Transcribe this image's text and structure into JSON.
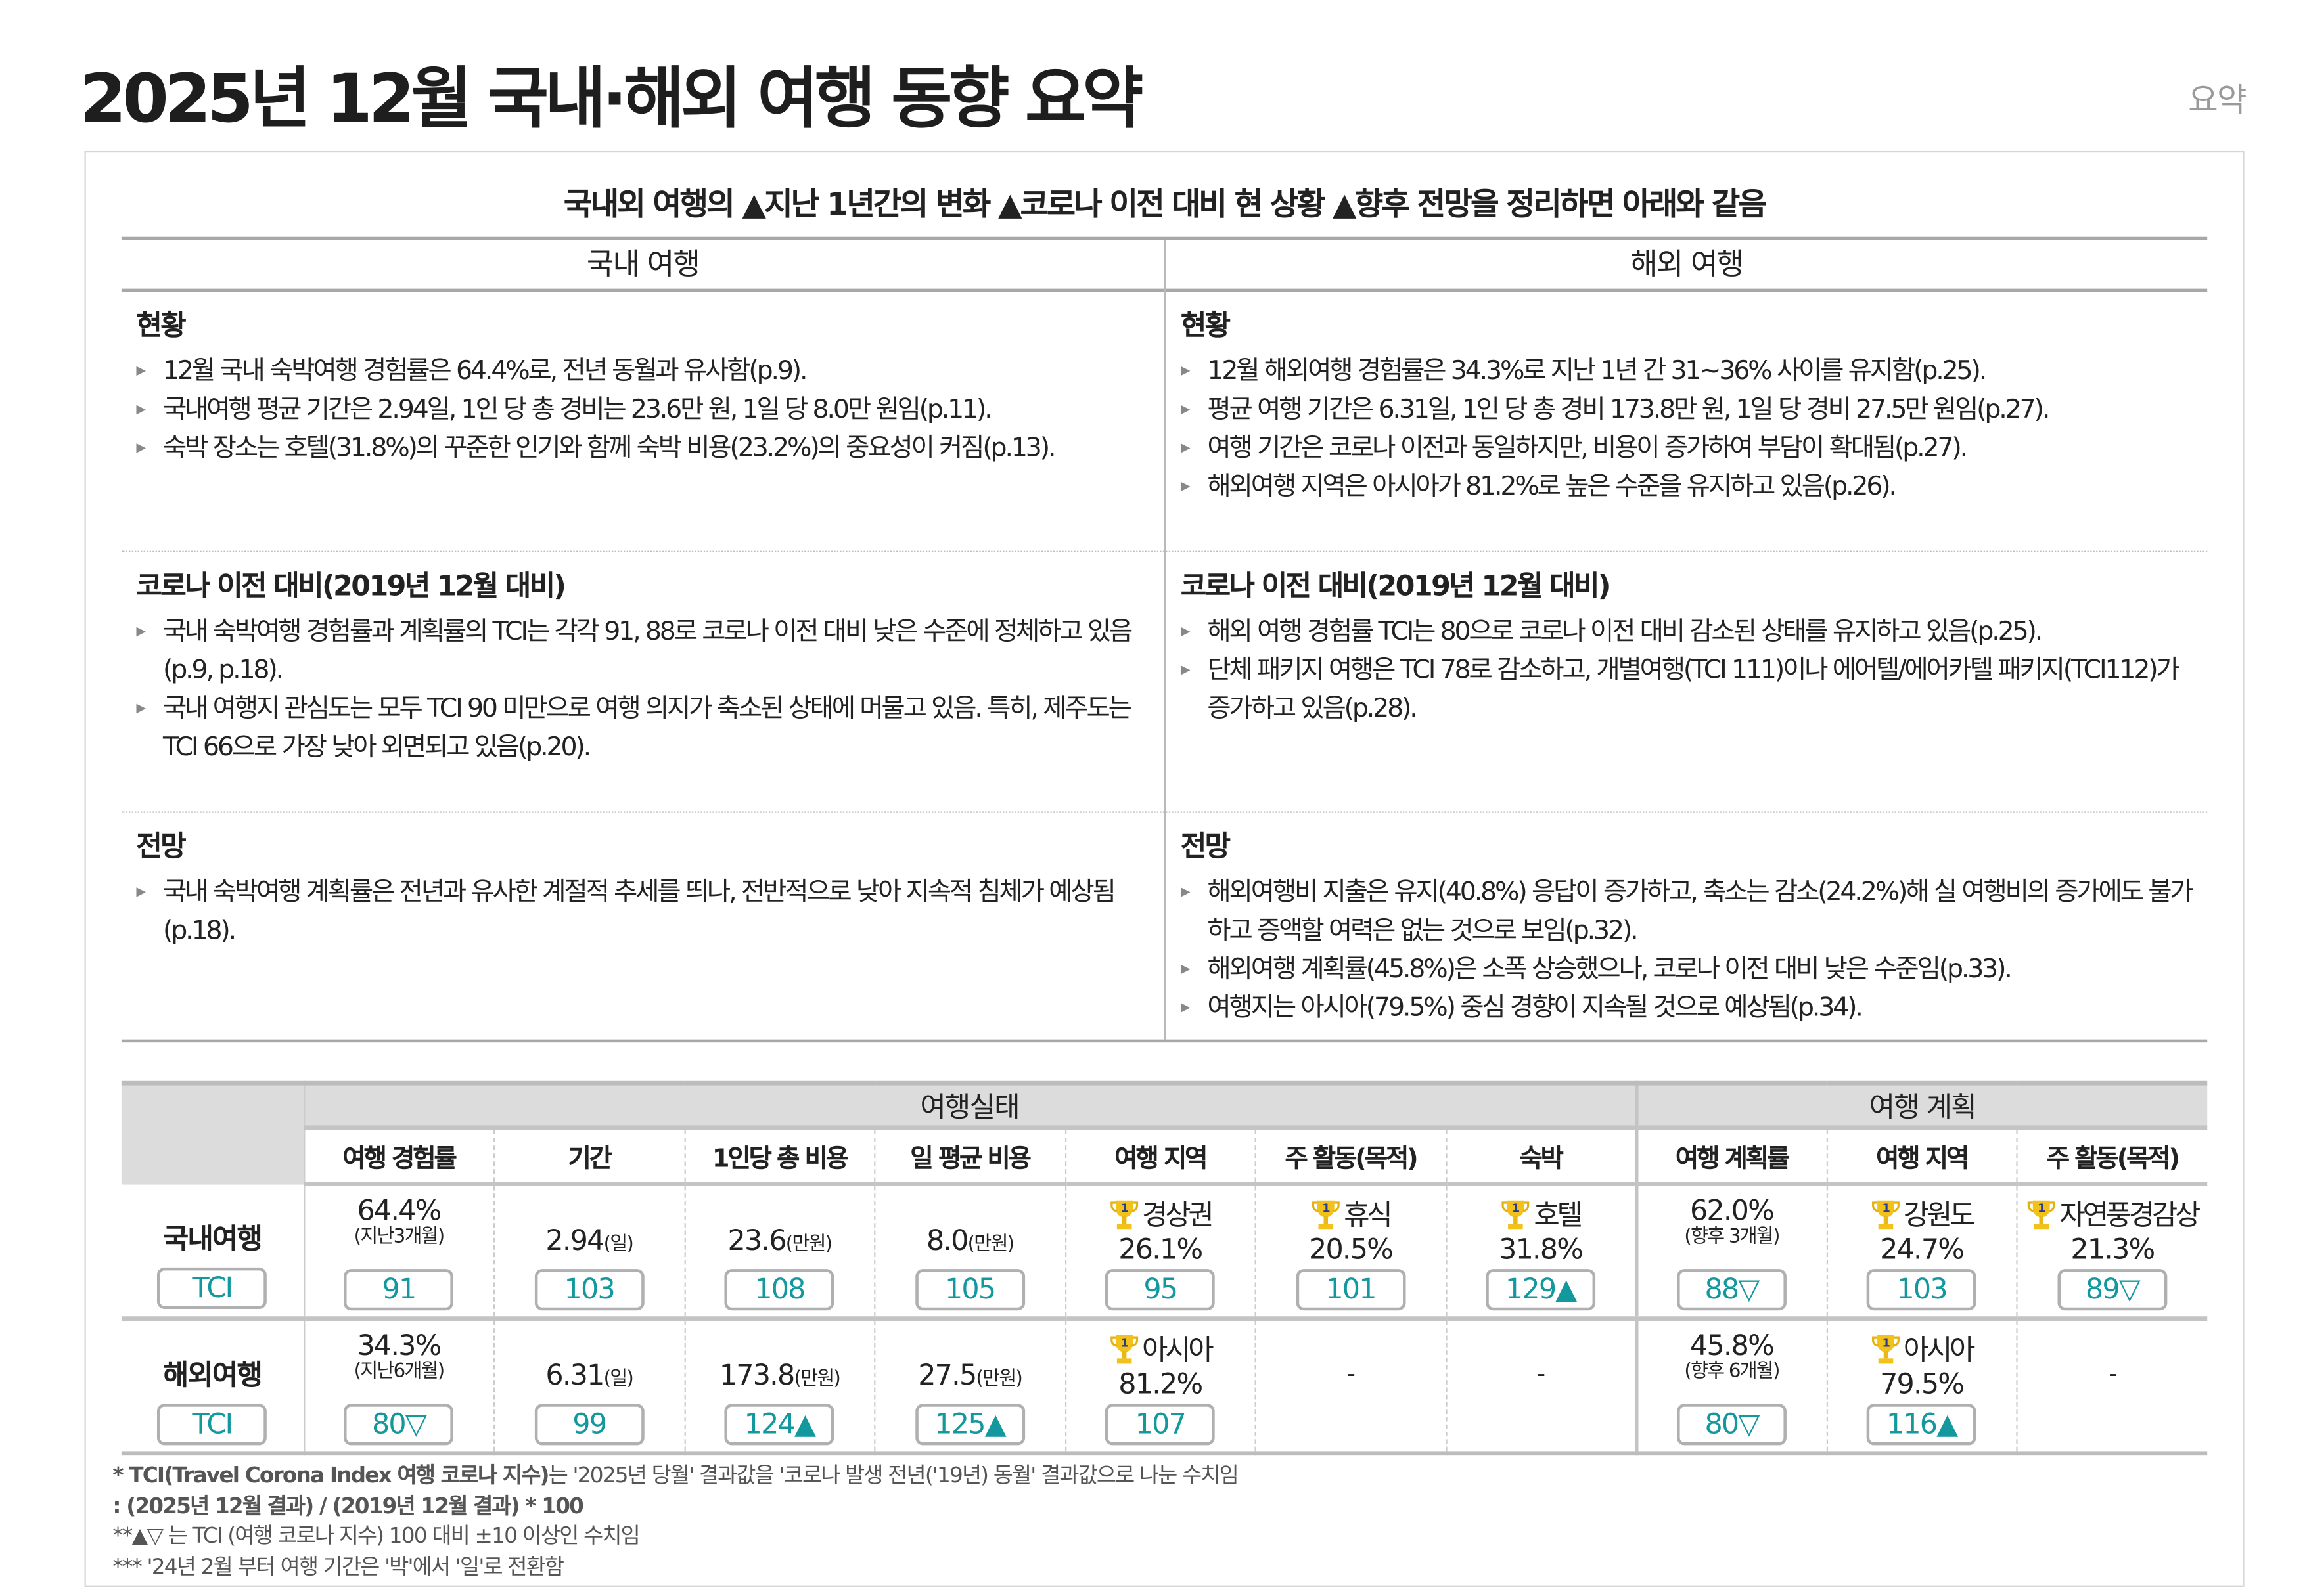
{
  "header": {
    "title": "2025년 12월 국내·해외 여행 동향 요약",
    "tag": "요약"
  },
  "summary": {
    "subtitle": "국내외 여행의 ▲지난 1년간의 변화 ▲코로나 이전 대비 현 상황 ▲향후 전망을 정리하면 아래와 같음",
    "columns": [
      {
        "heading": "국내 여행",
        "sections": [
          {
            "title": "현황",
            "items": [
              "12월 국내 숙박여행 경험률은 64.4%로, 전년 동월과 유사함(p.9).",
              "국내여행 평균 기간은 2.94일, 1인 당 총 경비는 23.6만 원, 1일 당 8.0만 원임(p.11).",
              "숙박 장소는 호텔(31.8%)의 꾸준한 인기와 함께 숙박 비용(23.2%)의 중요성이 커짐(p.13)."
            ]
          },
          {
            "title": "코로나 이전 대비(2019년 12월 대비)",
            "items": [
              "국내 숙박여행 경험률과 계획률의 TCI는 각각 91, 88로 코로나 이전 대비 낮은 수준에 정체하고 있음(p.9, p.18).",
              "국내 여행지 관심도는 모두 TCI 90 미만으로 여행 의지가 축소된 상태에 머물고 있음. 특히, 제주도는 TCI 66으로 가장 낮아 외면되고 있음(p.20)."
            ]
          },
          {
            "title": "전망",
            "items": [
              "국내 숙박여행 계획률은 전년과 유사한 계절적 추세를 띄나, 전반적으로 낮아 지속적 침체가 예상됨(p.18)."
            ]
          }
        ]
      },
      {
        "heading": "해외 여행",
        "sections": [
          {
            "title": "현황",
            "items": [
              "12월 해외여행 경험률은 34.3%로 지난 1년 간 31~36% 사이를 유지함(p.25).",
              "평균 여행 기간은 6.31일, 1인 당 총 경비 173.8만 원, 1일 당 경비 27.5만 원임(p.27).",
              "여행 기간은 코로나 이전과 동일하지만, 비용이 증가하여 부담이 확대됨(p.27).",
              "해외여행 지역은 아시아가 81.2%로 높은 수준을 유지하고 있음(p.26)."
            ]
          },
          {
            "title": "코로나 이전 대비(2019년 12월 대비)",
            "items": [
              "해외 여행 경험률 TCI는 80으로 코로나 이전 대비 감소된 상태를 유지하고 있음(p.25).",
              "단체 패키지 여행은 TCI 78로 감소하고, 개별여행(TCI 111)이나 에어텔/에어카텔 패키지(TCI112)가 증가하고 있음(p.28)."
            ]
          },
          {
            "title": "전망",
            "items": [
              "해외여행비 지출은 유지(40.8%) 응답이 증가하고, 축소는 감소(24.2%)해 실 여행비의 증가에도 불가하고 증액할 여력은 없는 것으로 보임(p.32).",
              "해외여행 계획률(45.8%)은 소폭 상승했으나, 코로나 이전 대비 낮은 수준임(p.33).",
              "여행지는 아시아(79.5%) 중심 경향이 지속될 것으로 예상됨(p.34)."
            ]
          }
        ]
      }
    ]
  },
  "table": {
    "groups": [
      "여행실태",
      "여행 계획"
    ],
    "columns": [
      "여행 경험률",
      "기간",
      "1인당 총 비용",
      "일 평균 비용",
      "여행 지역",
      "주 활동(목적)",
      "숙박",
      "여행 계획률",
      "여행 지역",
      "주 활동(목적)"
    ],
    "tci_label": "TCI",
    "rows": [
      {
        "label": "국내여행",
        "cells": [
          {
            "value": "64.4%",
            "sub": "(지난3개월)",
            "tci": "91"
          },
          {
            "value": "2.94",
            "unit": "(일)",
            "tci": "103"
          },
          {
            "value": "23.6",
            "unit": "(만원)",
            "tci": "108"
          },
          {
            "value": "8.0",
            "unit": "(만원)",
            "tci": "105"
          },
          {
            "rank_icon": "trophy-icon",
            "name": "경상권",
            "value": "26.1%",
            "tci": "95"
          },
          {
            "rank_icon": "trophy-icon",
            "name": "휴식",
            "value": "20.5%",
            "tci": "101"
          },
          {
            "rank_icon": "trophy-icon",
            "name": "호텔",
            "value": "31.8%",
            "tci": "129▲"
          },
          {
            "value": "62.0%",
            "sub": "(향후 3개월)",
            "tci": "88▽"
          },
          {
            "rank_icon": "trophy-icon",
            "name": "강원도",
            "value": "24.7%",
            "tci": "103"
          },
          {
            "rank_icon": "trophy-icon",
            "name": "자연풍경감상",
            "value": "21.3%",
            "tci": "89▽"
          }
        ]
      },
      {
        "label": "해외여행",
        "cells": [
          {
            "value": "34.3%",
            "sub": "(지난6개월)",
            "tci": "80▽"
          },
          {
            "value": "6.31",
            "unit": "(일)",
            "tci": "99"
          },
          {
            "value": "173.8",
            "unit": "(만원)",
            "tci": "124▲"
          },
          {
            "value": "27.5",
            "unit": "(만원)",
            "tci": "125▲"
          },
          {
            "rank_icon": "trophy-icon",
            "name": "아시아",
            "value": "81.2%",
            "tci": "107"
          },
          {
            "dash": "-"
          },
          {
            "dash": "-"
          },
          {
            "value": "45.8%",
            "sub": "(향후 6개월)",
            "tci": "80▽"
          },
          {
            "rank_icon": "trophy-icon",
            "name": "아시아",
            "value": "79.5%",
            "tci": "116▲"
          },
          {
            "dash": "-"
          }
        ]
      }
    ],
    "rank_number": "1"
  },
  "notes": {
    "n1_bold": "* TCI(Travel Corona Index 여행 코로나 지수)",
    "n1_rest": "는 '2025년 당월' 결과값을 '코로나 발생 전년('19년) 동월' 결과값으로 나눈 수치임",
    "n1_formula": " : (2025년 12월 결과) / (2019년 12월 결과) * 100",
    "n2": "**▲▽ 는 TCI (여행 코로나 지수) 100 대비 ±10 이상인 수치임",
    "n3": "*** '24년 2월 부터 여행 기간은 '박'에서 '일'로 전환함"
  },
  "colors": {
    "tci_text": "#13989e",
    "header_bg": "#dcdcdc",
    "trophy": "#f2c21b"
  }
}
